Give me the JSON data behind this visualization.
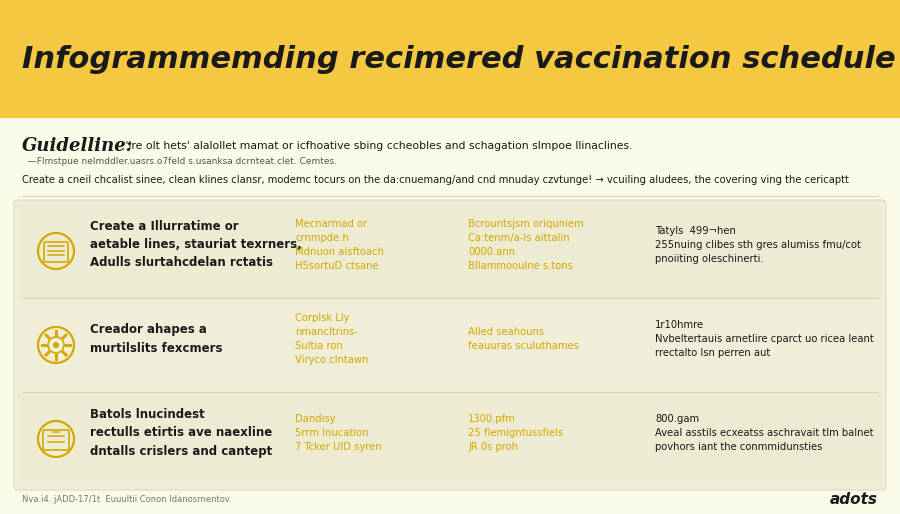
{
  "title": "Infogrammemding recimered vaccination schedule",
  "guideline_bold": "Guidelline:",
  "guideline_text": " 'ire olt hets' alalollet mamat or icfhoative sbing ccheobles and schagation slmpoe llinaclines.",
  "guideline_sub": "  —Flmstpue nelmddler.uasrs.o7feld s.usanksa.dcrnteat.clet. Cemtes.",
  "description": "Create a cneil chcalist sinee, clean klines clansr, modemc tocurs on the da:cnuemang/and cnd mnuday czvtunge! → vcuiling aludees, the covering ving the cericaptt",
  "header_bg": "#F5C842",
  "body_bg": "#FAFAE8",
  "row_bg": "#F0EED8",
  "yellow_accent": "#D4A800",
  "dark_text": "#1a1a1a",
  "medium_text": "#555555",
  "light_text": "#777777",
  "rows": [
    {
      "icon_color": "#D4A800",
      "title": "Create a Illurratime or\naetable lines, stauriat texrners,\nAdulls slurtahcdelan rctatis",
      "col2_title": "Mecnarmad or\ncrnmpde.h\nMdnuon alsftoach\nH5sortuD ctsane",
      "col3_title": "Bcrountsjsm oriquniem\nCa:tenm/a-ls aittalin\n0000.ann\nBllammooulne s.tons",
      "col4_title": "Tatyls  499¬hen\n255nuing clibes sth gres alumiss fmu/cot\npnoiiting oleschinerti."
    },
    {
      "icon_color": "#D4A800",
      "title": "Creador ahapes a\nmurtilslits fexcmers",
      "col2_title": "Corplsk Lly\nnmancltrins-\nSultia ron\nViryco clntawn",
      "col3_title": "Alled seahouns\nfeauuras sculuthames",
      "col4_title": "1r10hmre\nNvbeltertauis arnetlire cparct uo ricea leant\nrrectalto lsn perren aut"
    },
    {
      "icon_color": "#D4A800",
      "title": "Batols lnucindest\nrectulls etirtis ave naexline\ndntalls crislers and cantept",
      "col2_title": "Dandisy\n5rrm lnucation\n7 Tcker UlD syren",
      "col3_title": "1300.pfm\n25 flemigntussfiels\nJR 0s proh",
      "col4_title": "800.gam\nAveal asstils ecxeatss aschravait tlm balnet\npovhors iant the conmmidunsties"
    }
  ],
  "footer_left": "Nva.i4. jADD-17/1t  Euuultii Conon Idanosrnentov.",
  "footer_right": "adots",
  "col2_color": "#D4A800",
  "col3_color": "#D4A800",
  "col4_color": "#1a1a1a",
  "fig_width": 9.0,
  "fig_height": 5.14,
  "dpi": 100
}
